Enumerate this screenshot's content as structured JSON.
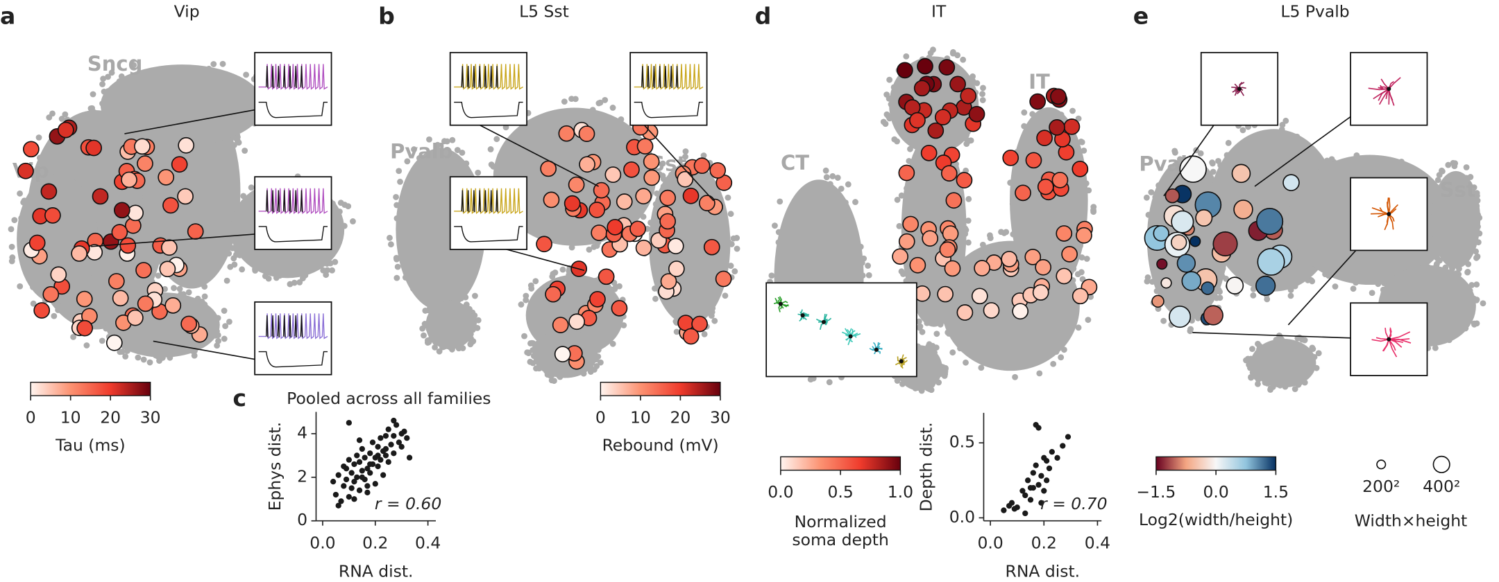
{
  "panels": [
    {
      "letter": "a",
      "title": "Vip",
      "cluster_labels": [
        "Sncg",
        "Vip"
      ]
    },
    {
      "letter": "b",
      "title": "L5 Sst",
      "cluster_labels": [
        "Pvalb",
        "Sst"
      ]
    },
    {
      "letter": "d",
      "title": "IT",
      "cluster_labels": [
        "CT",
        "IT"
      ]
    },
    {
      "letter": "e",
      "title": "L5 Pvalb",
      "cluster_labels": [
        "Pvalb",
        "Sst"
      ]
    }
  ],
  "colorbars": [
    {
      "label": "Tau (ms)",
      "lim": [
        0,
        30
      ],
      "ticks": [
        0,
        10,
        20,
        30
      ],
      "colors": [
        "#fff5f0",
        "#fc9272",
        "#ef3b2c",
        "#67000d"
      ]
    },
    {
      "label": "Rebound (mV)",
      "lim": [
        0,
        30
      ],
      "ticks": [
        0,
        10,
        20,
        30
      ],
      "colors": [
        "#fff5f0",
        "#fc9272",
        "#ef3b2c",
        "#67000d"
      ]
    },
    {
      "label": [
        "Normalized",
        "soma depth"
      ],
      "lim": [
        0,
        1
      ],
      "ticks": [
        {
          "value": 0,
          "label": "0.0"
        },
        {
          "value": 0.5,
          "label": "0.5"
        },
        {
          "value": 1,
          "label": "1.0"
        }
      ],
      "colors": [
        "#fff5f0",
        "#fc9272",
        "#ef3b2c",
        "#67000d"
      ]
    },
    {
      "label": "Log2(width/height)",
      "lim": [
        -1.5,
        1.5
      ],
      "ticks": [
        {
          "value": -1.5,
          "label": "−1.5"
        },
        {
          "value": 0,
          "label": "0.0"
        },
        1.5
      ],
      "colors": [
        "#67001f",
        "#f4a582",
        "#f7f7f7",
        "#92c5de",
        "#053061"
      ]
    }
  ],
  "size_legend": {
    "title": "Width×height",
    "labels": [
      "200²",
      "400²"
    ]
  },
  "chart_data": [
    {
      "type": "scatter",
      "letter": "c",
      "title": "Pooled across all families",
      "xlabel": "RNA dist.",
      "ylabel": "Ephys dist.",
      "annotation": "r = 0.60",
      "color": "#1a1a1a",
      "xlim": [
        -0.025,
        0.43
      ],
      "ylim": [
        0,
        5
      ],
      "xticks": [
        {
          "value": 0,
          "label": "0.0"
        },
        0.2,
        0.4
      ],
      "yticks": [
        0,
        2,
        4
      ],
      "x": [
        0.05,
        0.06,
        0.07,
        0.08,
        0.08,
        0.09,
        0.1,
        0.1,
        0.11,
        0.11,
        0.12,
        0.12,
        0.13,
        0.13,
        0.14,
        0.14,
        0.15,
        0.15,
        0.16,
        0.16,
        0.17,
        0.17,
        0.18,
        0.18,
        0.19,
        0.19,
        0.2,
        0.2,
        0.21,
        0.21,
        0.22,
        0.22,
        0.23,
        0.23,
        0.24,
        0.24,
        0.25,
        0.25,
        0.26,
        0.27,
        0.27,
        0.28,
        0.29,
        0.3,
        0.31,
        0.32,
        0.33,
        0.04,
        0.06,
        0.09,
        0.12,
        0.15,
        0.18,
        0.21,
        0.24,
        0.27,
        0.3,
        0.1,
        0.14,
        0.17
      ],
      "y": [
        1.2,
        2.1,
        0.9,
        1.6,
        2.5,
        1.9,
        1.1,
        2.8,
        2.2,
        1.5,
        2.6,
        1.8,
        3.0,
        2.0,
        1.4,
        2.7,
        2.3,
        3.3,
        1.9,
        2.9,
        2.4,
        1.6,
        3.1,
        2.2,
        3.6,
        2.6,
        2.9,
        1.7,
        3.4,
        2.5,
        3.8,
        2.8,
        3.2,
        2.1,
        3.9,
        3.0,
        4.2,
        2.7,
        3.5,
        3.9,
        3.1,
        4.4,
        3.6,
        3.4,
        4.1,
        3.8,
        2.9,
        1.8,
        0.7,
        2.4,
        1.0,
        2.0,
        2.6,
        3.0,
        3.3,
        4.6,
        4.0,
        4.5,
        3.7,
        1.3
      ]
    },
    {
      "type": "scatter",
      "xlabel": "RNA dist.",
      "ylabel": "Depth dist.",
      "annotation": "r = 0.70",
      "color": "#1a1a1a",
      "xlim": [
        -0.025,
        0.415
      ],
      "ylim": [
        -0.02,
        0.7
      ],
      "xticks": [
        {
          "value": 0,
          "label": "0.0"
        },
        0.2,
        0.4
      ],
      "yticks": [
        {
          "value": 0,
          "label": "0.0"
        },
        0.5
      ],
      "x": [
        0.05,
        0.07,
        0.08,
        0.1,
        0.12,
        0.13,
        0.14,
        0.15,
        0.16,
        0.16,
        0.17,
        0.18,
        0.18,
        0.19,
        0.2,
        0.2,
        0.21,
        0.22,
        0.23,
        0.25,
        0.27,
        0.29,
        0.13,
        0.17,
        0.19,
        0.21,
        0.15,
        0.09
      ],
      "y": [
        0.05,
        0.08,
        0.1,
        0.07,
        0.18,
        0.15,
        0.25,
        0.12,
        0.3,
        0.2,
        0.35,
        0.22,
        0.6,
        0.28,
        0.18,
        0.4,
        0.25,
        0.33,
        0.44,
        0.4,
        0.48,
        0.54,
        0.03,
        0.62,
        0.1,
        0.38,
        0.2,
        0.06
      ]
    }
  ]
}
